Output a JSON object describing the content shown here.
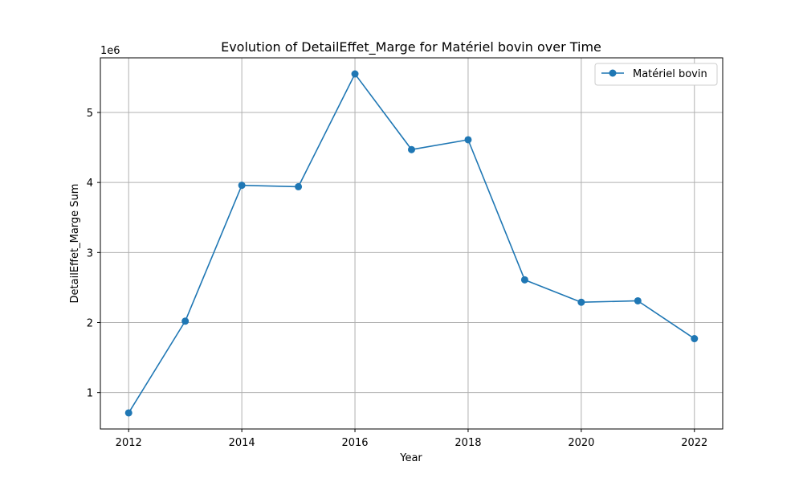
{
  "chart_data": {
    "type": "line",
    "title": "Evolution of DetailEffet_Marge for Matériel bovin over Time",
    "xlabel": "Year",
    "ylabel": "DetailEffet_Marge Sum",
    "offset_text": "1e6",
    "x": [
      2012,
      2013,
      2014,
      2015,
      2016,
      2017,
      2018,
      2019,
      2020,
      2021,
      2022
    ],
    "series": [
      {
        "name": "Matériel bovin",
        "color": "#1f77b4",
        "marker": "circle",
        "values": [
          710000,
          2020000,
          3960000,
          3940000,
          5550000,
          4470000,
          4610000,
          2610000,
          2290000,
          2310000,
          1770000
        ]
      }
    ],
    "xlim": [
      2011.5,
      2022.5
    ],
    "ylim": [
      480000,
      5780000
    ],
    "xticks": [
      2012,
      2014,
      2016,
      2018,
      2020,
      2022
    ],
    "yticks": [
      1,
      2,
      3,
      4,
      5
    ],
    "grid": true,
    "legend_position": "upper right"
  }
}
